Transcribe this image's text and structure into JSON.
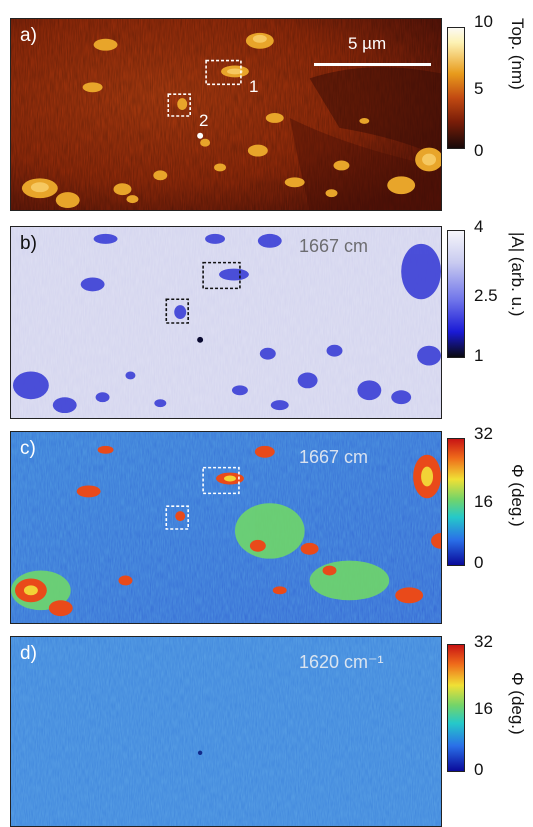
{
  "panels": [
    {
      "label": "a)",
      "annotation": "",
      "cbar_ticks": [
        "10",
        "5",
        "0"
      ],
      "cbar_label": "Top. (nm)",
      "box_labels": [
        "1",
        "2"
      ],
      "colors": [
        "#170909",
        "#7a1d08",
        "#c24a12",
        "#e89b1c",
        "#fdf2b4",
        "#fbfaf4"
      ]
    },
    {
      "label": "b)",
      "annotation": "1667 cm",
      "cbar_ticks": [
        "4",
        "2.5",
        "1"
      ],
      "cbar_label": "|A| (arb. u.)",
      "colors": [
        "#0a0a10",
        "#1a1ad6",
        "#6f74ea",
        "#c9cbf0",
        "#f5f5fa"
      ]
    },
    {
      "label": "c)",
      "annotation": "1667 cm",
      "cbar_ticks": [
        "32",
        "16",
        "0"
      ],
      "cbar_label": "Φ (deg.)",
      "colors": [
        "#0a0a9a",
        "#2a70e8",
        "#25c9c9",
        "#72d46a",
        "#f0e035",
        "#ef6a1a",
        "#c81414"
      ]
    },
    {
      "label": "d)",
      "annotation": "1620 cm⁻¹",
      "cbar_ticks": [
        "32",
        "16",
        "0"
      ],
      "cbar_label": "Φ (deg.)",
      "colors": [
        "#0a0a9a",
        "#2a70e8",
        "#25c9c9",
        "#72d46a",
        "#f0e035",
        "#ef6a1a",
        "#c81414"
      ]
    }
  ],
  "scale_bar": {
    "label": "5 µm"
  }
}
